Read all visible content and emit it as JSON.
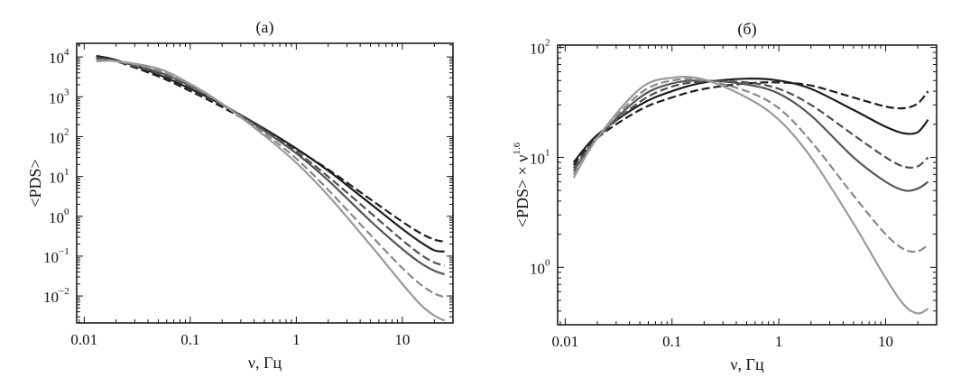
{
  "chart_data": [
    {
      "type": "line",
      "title": "(a)",
      "xlabel": "ν, Гц",
      "ylabel": "<PDS>",
      "xscale": "log",
      "yscale": "log",
      "xlim": [
        0.0085,
        30
      ],
      "ylim": [
        0.0021,
        22000
      ],
      "grid": false,
      "xticks": [
        {
          "v": 0.01,
          "label": "0.01"
        },
        {
          "v": 0.1,
          "label": "0.1"
        },
        {
          "v": 1,
          "label": "1"
        },
        {
          "v": 10,
          "label": "10"
        }
      ],
      "yticks": [
        {
          "v": 10000,
          "base": "10",
          "exp": "4"
        },
        {
          "v": 1000,
          "base": "10",
          "exp": "3"
        },
        {
          "v": 100,
          "base": "10",
          "exp": "2"
        },
        {
          "v": 10,
          "base": "10",
          "exp": "1"
        },
        {
          "v": 1,
          "base": "10",
          "exp": "0"
        },
        {
          "v": 0.1,
          "base": "10",
          "exp": "−1"
        },
        {
          "v": 0.01,
          "base": "10",
          "exp": "−2"
        }
      ],
      "x": [
        0.013,
        0.02,
        0.05,
        0.1,
        0.2,
        0.5,
        1,
        2,
        5,
        10,
        15,
        20,
        25
      ],
      "series": [
        {
          "name": "series-1",
          "color": "#1e1e1e",
          "dash": true,
          "values": [
            10070,
            7850,
            3260,
            1390,
            551,
            142,
            48,
            14.9,
            2.67,
            0.73,
            0.37,
            0.26,
            0.23
          ]
        },
        {
          "name": "series-2",
          "color": "#1e1e1e",
          "dash": false,
          "values": [
            10670,
            8370,
            3620,
            1590,
            630,
            158,
            50,
            13.9,
            2.06,
            0.48,
            0.22,
            0.14,
            0.13
          ]
        },
        {
          "name": "series-3",
          "color": "#505050",
          "dash": true,
          "values": [
            9480,
            7850,
            3860,
            1750,
            643,
            145,
            42,
            9.9,
            1.22,
            0.25,
            0.108,
            0.069,
            0.058
          ]
        },
        {
          "name": "series-4",
          "color": "#555555",
          "dash": false,
          "values": [
            8890,
            7850,
            4220,
            1870,
            657,
            139,
            38,
            7.9,
            0.76,
            0.15,
            0.066,
            0.043,
            0.035
          ]
        },
        {
          "name": "series-5",
          "color": "#888888",
          "dash": true,
          "values": [
            8300,
            7850,
            4590,
            1990,
            657,
            121,
            28,
            4.6,
            0.34,
            0.05,
            0.019,
            0.0116,
            0.0093
          ]
        },
        {
          "name": "series-6",
          "color": "#9a9a9a",
          "dash": false,
          "values": [
            7700,
            7850,
            5070,
            2110,
            670,
            106,
            22,
            3.3,
            0.19,
            0.02,
            0.0059,
            0.0032,
            0.0024
          ]
        }
      ]
    },
    {
      "type": "line",
      "title": "(б)",
      "xlabel": "ν, Гц",
      "ylabel": "<PDS> × ν",
      "ylabel_sup": "1.6",
      "xscale": "log",
      "yscale": "log",
      "xlim": [
        0.0085,
        30
      ],
      "ylim": [
        0.3,
        105
      ],
      "grid": false,
      "xticks": [
        {
          "v": 0.01,
          "label": "0.01"
        },
        {
          "v": 0.1,
          "label": "0.1"
        },
        {
          "v": 1,
          "label": "1"
        },
        {
          "v": 10,
          "label": "10"
        }
      ],
      "yticks": [
        {
          "v": 100,
          "base": "10",
          "exp": "2"
        },
        {
          "v": 10,
          "base": "10",
          "exp": "1"
        },
        {
          "v": 1,
          "base": "10",
          "exp": "0"
        }
      ],
      "x": [
        0.012,
        0.02,
        0.05,
        0.1,
        0.2,
        0.5,
        1,
        2,
        5,
        10,
        15,
        20,
        25
      ],
      "series": [
        {
          "name": "series-1",
          "color": "#1e1e1e",
          "dash": true,
          "values": [
            8.5,
            15,
            27,
            35,
            42,
            47,
            48,
            45,
            35,
            29,
            28,
            31,
            40
          ]
        },
        {
          "name": "series-2",
          "color": "#1e1e1e",
          "dash": false,
          "values": [
            9,
            16,
            30,
            40,
            48,
            52,
            50,
            42,
            27,
            19,
            16.5,
            17,
            22
          ]
        },
        {
          "name": "series-3",
          "color": "#505050",
          "dash": true,
          "values": [
            8,
            15,
            32,
            44,
            49,
            48,
            42,
            30,
            16,
            10,
            8.2,
            8.3,
            10
          ]
        },
        {
          "name": "series-4",
          "color": "#555555",
          "dash": false,
          "values": [
            7.5,
            15,
            35,
            47,
            50,
            46,
            38,
            24,
            10,
            6,
            5,
            5.2,
            6
          ]
        },
        {
          "name": "series-5",
          "color": "#888888",
          "dash": true,
          "values": [
            7,
            15,
            38,
            50,
            50,
            40,
            28,
            14,
            4.5,
            2,
            1.45,
            1.4,
            1.6
          ]
        },
        {
          "name": "series-6",
          "color": "#9a9a9a",
          "dash": false,
          "values": [
            6.5,
            15,
            42,
            53,
            51,
            35,
            22,
            10,
            2.5,
            0.8,
            0.45,
            0.38,
            0.42
          ]
        }
      ]
    }
  ]
}
